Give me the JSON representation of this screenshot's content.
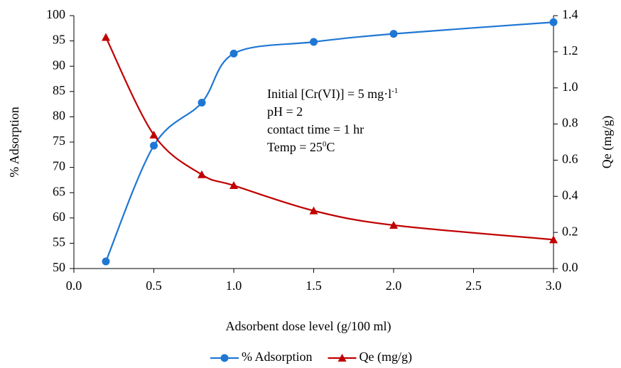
{
  "chart_data": {
    "type": "line",
    "x_label": "Adsorbent dose level (g/100 ml)",
    "y_label": "% Adsorption",
    "y2_label": "Qe (mg/g)",
    "xlim": [
      0,
      3
    ],
    "xticks": [
      {
        "value": 0,
        "label": "0.0"
      },
      {
        "value": 0.5,
        "label": "0.5"
      },
      {
        "value": 1,
        "label": "1.0"
      },
      {
        "value": 1.5,
        "label": "1.5"
      },
      {
        "value": 2,
        "label": "2.0"
      },
      {
        "value": 2.5,
        "label": "2.5"
      },
      {
        "value": 3,
        "label": "3.0"
      }
    ],
    "ylim": [
      50,
      100
    ],
    "yticks": [
      50,
      55,
      60,
      65,
      70,
      75,
      80,
      85,
      90,
      95,
      100
    ],
    "y2lim": [
      0,
      1.4
    ],
    "y2ticks": [
      {
        "value": 0,
        "label": "0.0"
      },
      {
        "value": 0.2,
        "label": "0.2"
      },
      {
        "value": 0.4,
        "label": "0.4"
      },
      {
        "value": 0.6,
        "label": "0.6"
      },
      {
        "value": 0.8,
        "label": "0.8"
      },
      {
        "value": 1,
        "label": "1.0"
      },
      {
        "value": 1.2,
        "label": "1.2"
      },
      {
        "value": 1.4,
        "label": "1.4"
      }
    ],
    "x": [
      0.2,
      0.5,
      0.8,
      1.0,
      1.5,
      2.0,
      3.0
    ],
    "series": [
      {
        "name": "% Adsorption",
        "color": "#1f77d4",
        "marker": "circle",
        "values": [
          51.4,
          74.3,
          82.8,
          92.5,
          94.8,
          96.4,
          98.7
        ]
      },
      {
        "name": "Qe (mg/g)",
        "color": "#c00000",
        "marker": "triangle",
        "axis": "y2",
        "values": [
          1.28,
          0.74,
          0.52,
          0.46,
          0.32,
          0.24,
          0.16
        ]
      }
    ],
    "annotation": [
      [
        {
          "text": "Initial [Cr(VI)] = 5 mg·l"
        },
        {
          "text": "-1",
          "sup": true
        }
      ],
      [
        {
          "text": "pH = 2"
        }
      ],
      [
        {
          "text": "contact time = 1 hr"
        }
      ],
      [
        {
          "text": "Temp = 25"
        },
        {
          "text": "0",
          "sup": true
        },
        {
          "text": "C"
        }
      ]
    ],
    "legend": "bottom"
  }
}
